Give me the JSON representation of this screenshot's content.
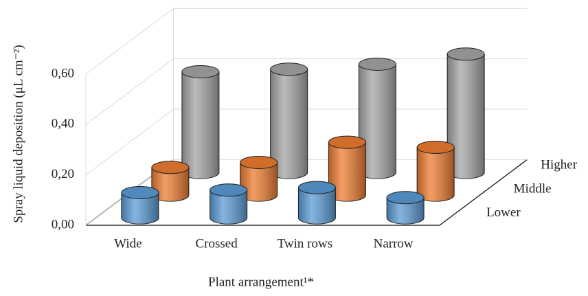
{
  "chart_data": {
    "type": "bar3d",
    "y_label": "Spray liquid deposition (μL cm⁻²)",
    "x_label": "Plant arrangement¹*",
    "categories": [
      "Wide",
      "Crossed",
      "Twin rows",
      "Narrow"
    ],
    "series": [
      {
        "name": "Lower",
        "color": "#5b9bd5",
        "values": [
          0.1,
          0.11,
          0.12,
          0.08
        ]
      },
      {
        "name": "Middle",
        "color": "#ed7d31",
        "values": [
          0.11,
          0.13,
          0.21,
          0.19
        ]
      },
      {
        "name": "Higher",
        "color": "#a5a5a5",
        "values": [
          0.4,
          0.41,
          0.43,
          0.47
        ]
      }
    ],
    "ylim": [
      0,
      0.6
    ],
    "yticks": [
      {
        "value": 0,
        "label": "0,00"
      },
      {
        "value": 0.2,
        "label": "0,20"
      },
      {
        "value": 0.4,
        "label": "0,40"
      },
      {
        "value": 0.6,
        "label": "0,60"
      }
    ],
    "grid": true
  }
}
